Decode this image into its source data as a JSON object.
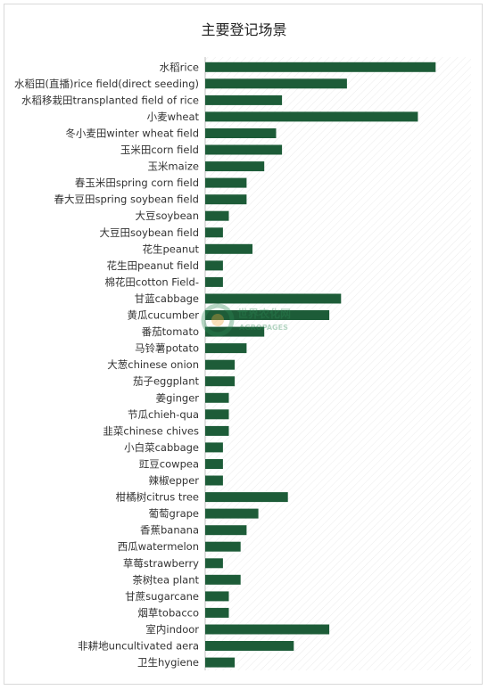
{
  "chart_data": {
    "type": "bar",
    "orientation": "horizontal",
    "title": "主要登记场景",
    "xlabel": "",
    "ylabel": "",
    "categories": [
      "水稻rice",
      "水稻田(直播)rice field(direct seeding)",
      "水稻移栽田transplanted field of rice",
      "小麦wheat",
      "冬小麦田winter wheat field",
      "玉米田corn field",
      "玉米maize",
      "春玉米田spring corn field",
      "春大豆田spring soybean field",
      "大豆soybean",
      "大豆田soybean field",
      "花生peanut",
      "花生田peanut field",
      "棉花田cotton Field-",
      "甘蓝cabbage",
      "黄瓜cucumber",
      "番茄tomato",
      "马铃薯potato",
      "大葱chinese onion",
      "茄子eggplant",
      "姜ginger",
      "节瓜chieh-qua",
      "韭菜chinese chives",
      "小白菜cabbage",
      "豇豆cowpea",
      "辣椒epper",
      "柑橘树citrus tree",
      "葡萄grape",
      "香蕉banana",
      "西瓜watermelon",
      "草莓strawberry",
      "茶树tea plant",
      "甘蔗sugarcane",
      "烟草tobacco",
      "室内indoor",
      "非耕地uncultivated aera",
      "卫生hygiene"
    ],
    "values": [
      39,
      24,
      13,
      36,
      12,
      13,
      10,
      7,
      7,
      4,
      3,
      8,
      3,
      3,
      23,
      21,
      10,
      7,
      5,
      5,
      4,
      4,
      4,
      3,
      3,
      3,
      14,
      9,
      7,
      6,
      3,
      6,
      4,
      4,
      21,
      15,
      5
    ],
    "xlim": [
      0,
      45
    ],
    "grid": false,
    "legend": "none",
    "bar_color": "#1d5c38"
  },
  "watermark": {
    "text_cn": "世界农化网",
    "text_en": "AGROPAGES"
  }
}
